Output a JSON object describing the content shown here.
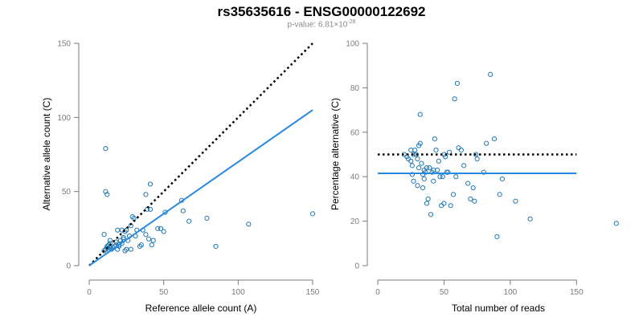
{
  "title": "rs35635616 - ENSG00000122692",
  "subtitle": {
    "prefix": "p-value: 6.81×10",
    "exponent": "-28"
  },
  "colors": {
    "points": "#1f78b4",
    "fit": "#2b89e0",
    "reference": "#000000"
  },
  "chart_data": [
    {
      "type": "scatter",
      "xlabel": "Reference allele count (A)",
      "ylabel": "Alternative allele count (C)",
      "xlim": [
        0,
        150
      ],
      "ylim": [
        0,
        150
      ],
      "xticks": [
        0,
        50,
        100,
        150
      ],
      "yticks": [
        0,
        50,
        100,
        150
      ],
      "grid": false,
      "points": [
        [
          11,
          79
        ],
        [
          11,
          50
        ],
        [
          12,
          48
        ],
        [
          10,
          21
        ],
        [
          10,
          10
        ],
        [
          11,
          11
        ],
        [
          12,
          12
        ],
        [
          12,
          13
        ],
        [
          13,
          11
        ],
        [
          13,
          14
        ],
        [
          14,
          12
        ],
        [
          14,
          15
        ],
        [
          14,
          17
        ],
        [
          15,
          11
        ],
        [
          16,
          12
        ],
        [
          17,
          13
        ],
        [
          18,
          14
        ],
        [
          18,
          16
        ],
        [
          19,
          11
        ],
        [
          19,
          24
        ],
        [
          20,
          13
        ],
        [
          20,
          14
        ],
        [
          21,
          17
        ],
        [
          22,
          15
        ],
        [
          22,
          24
        ],
        [
          23,
          18
        ],
        [
          23,
          19
        ],
        [
          24,
          23
        ],
        [
          24,
          10
        ],
        [
          25,
          24
        ],
        [
          25,
          11
        ],
        [
          26,
          17
        ],
        [
          27,
          20
        ],
        [
          28,
          27
        ],
        [
          28,
          11
        ],
        [
          29,
          33
        ],
        [
          30,
          32
        ],
        [
          31,
          20
        ],
        [
          32,
          24
        ],
        [
          34,
          13
        ],
        [
          35,
          14
        ],
        [
          36,
          24
        ],
        [
          38,
          48
        ],
        [
          38,
          21
        ],
        [
          39,
          38
        ],
        [
          40,
          18
        ],
        [
          41,
          55
        ],
        [
          41,
          38
        ],
        [
          42,
          14
        ],
        [
          43,
          17
        ],
        [
          46,
          25
        ],
        [
          48,
          25
        ],
        [
          50,
          23
        ],
        [
          51,
          36
        ],
        [
          62,
          44
        ],
        [
          63,
          37
        ],
        [
          67,
          30
        ],
        [
          79,
          32
        ],
        [
          85,
          13
        ],
        [
          107,
          28
        ],
        [
          150,
          35
        ]
      ],
      "reference_line": {
        "style": "dotted",
        "x": [
          0,
          150
        ],
        "y": [
          0,
          150
        ]
      },
      "fit_line": {
        "style": "solid",
        "x": [
          0,
          150
        ],
        "y": [
          0,
          105
        ]
      }
    },
    {
      "type": "scatter",
      "xlabel": "Total number of reads",
      "ylabel": "Percentage alternative (C)",
      "xlim": [
        0,
        185
      ],
      "ylim": [
        0,
        100
      ],
      "xticks": [
        0,
        50,
        100,
        150
      ],
      "yticks": [
        0,
        20,
        40,
        60,
        80,
        100
      ],
      "grid": false,
      "points": [
        [
          20,
          50
        ],
        [
          22,
          49
        ],
        [
          23,
          48
        ],
        [
          25,
          52
        ],
        [
          25,
          47
        ],
        [
          26,
          45
        ],
        [
          26,
          41
        ],
        [
          27,
          50
        ],
        [
          27,
          38
        ],
        [
          28,
          52
        ],
        [
          29,
          50
        ],
        [
          30,
          48
        ],
        [
          30,
          36
        ],
        [
          31,
          54
        ],
        [
          31,
          44
        ],
        [
          32,
          55
        ],
        [
          32,
          68
        ],
        [
          33,
          46
        ],
        [
          34,
          41
        ],
        [
          34,
          35
        ],
        [
          35,
          43
        ],
        [
          35,
          39
        ],
        [
          36,
          42
        ],
        [
          37,
          44
        ],
        [
          37,
          28
        ],
        [
          38,
          30
        ],
        [
          39,
          44
        ],
        [
          40,
          23
        ],
        [
          41,
          42
        ],
        [
          42,
          43
        ],
        [
          42,
          38
        ],
        [
          43,
          57
        ],
        [
          44,
          52
        ],
        [
          45,
          43
        ],
        [
          46,
          47
        ],
        [
          47,
          40
        ],
        [
          48,
          27
        ],
        [
          49,
          40
        ],
        [
          50,
          28
        ],
        [
          50,
          50
        ],
        [
          51,
          49
        ],
        [
          52,
          42
        ],
        [
          53,
          42
        ],
        [
          54,
          51
        ],
        [
          55,
          27
        ],
        [
          57,
          32
        ],
        [
          58,
          75
        ],
        [
          59,
          40
        ],
        [
          60,
          82
        ],
        [
          61,
          53
        ],
        [
          63,
          52
        ],
        [
          65,
          45
        ],
        [
          68,
          37
        ],
        [
          70,
          30
        ],
        [
          72,
          35
        ],
        [
          73,
          29
        ],
        [
          74,
          50
        ],
        [
          75,
          48
        ],
        [
          80,
          42
        ],
        [
          82,
          55
        ],
        [
          85,
          86
        ],
        [
          88,
          57
        ],
        [
          90,
          13
        ],
        [
          92,
          32
        ],
        [
          94,
          39
        ],
        [
          104,
          29
        ],
        [
          115,
          21
        ],
        [
          180,
          19
        ]
      ],
      "reference_line": {
        "style": "dotted",
        "x": [
          0,
          150
        ],
        "y": [
          50,
          50
        ]
      },
      "fit_line": {
        "style": "solid",
        "x": [
          0,
          150
        ],
        "y": [
          41.5,
          41.5
        ]
      }
    }
  ]
}
